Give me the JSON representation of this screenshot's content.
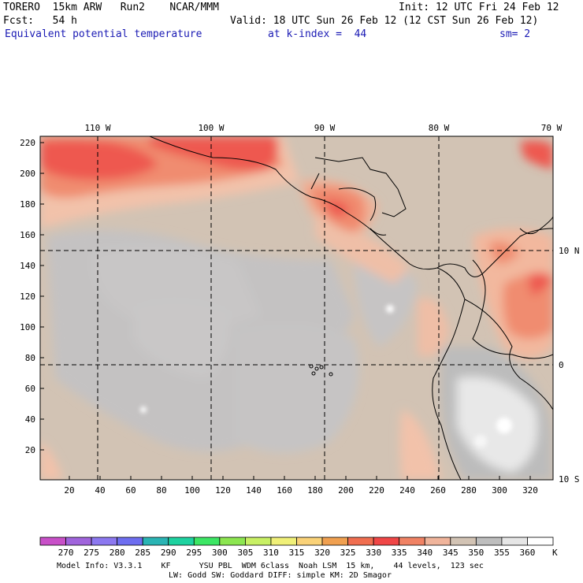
{
  "header": {
    "title": "TORERO  15km ARW   Run2    NCAR/MMM",
    "init": "Init: 12 UTC Fri 24 Feb 12",
    "fcst": "Fcst:   54 h",
    "valid": "Valid: 18 UTC Sun 26 Feb 12 (12 CST Sun 26 Feb 12)",
    "field": "Equivalent potential temperature",
    "kindex": "at k-index =  44",
    "sm": "sm= 2"
  },
  "top_axis_labels": [
    "110 W",
    "100 W",
    "90 W",
    "80 W",
    "70 W"
  ],
  "left_axis_labels": [
    "220",
    "200",
    "180",
    "160",
    "140",
    "120",
    "100",
    "80",
    "60",
    "40",
    "20"
  ],
  "bottom_axis_labels": [
    "20",
    "40",
    "60",
    "80",
    "100",
    "120",
    "140",
    "160",
    "180",
    "200",
    "220",
    "240",
    "260",
    "280",
    "300",
    "320"
  ],
  "right_axis_labels": [
    "10 N",
    "0",
    "10 S"
  ],
  "colorbar": {
    "labels": [
      "270",
      "275",
      "280",
      "285",
      "290",
      "295",
      "300",
      "305",
      "310",
      "315",
      "320",
      "325",
      "330",
      "335",
      "340",
      "345",
      "350",
      "355",
      "360"
    ],
    "unit": "K",
    "colors": [
      "#c850c8",
      "#a064dc",
      "#8c78f0",
      "#6e6ef0",
      "#2ab4b4",
      "#1ed2a0",
      "#3ce664",
      "#8ce650",
      "#c8f064",
      "#f0f078",
      "#fad278",
      "#f0a050",
      "#f06e50",
      "#f04646",
      "#f08264",
      "#f0b49b",
      "#d2c3b4",
      "#bebebe",
      "#e6e6e6",
      "#ffffff"
    ]
  },
  "footer": {
    "line1": "Model Info: V3.3.1    KF      YSU PBL  WDM 6class  Noah LSM  15 km,    44 levels,  123 sec",
    "line2": "LW: Godd SW: Goddard DIFF: simple KM: 2D Smagor"
  }
}
